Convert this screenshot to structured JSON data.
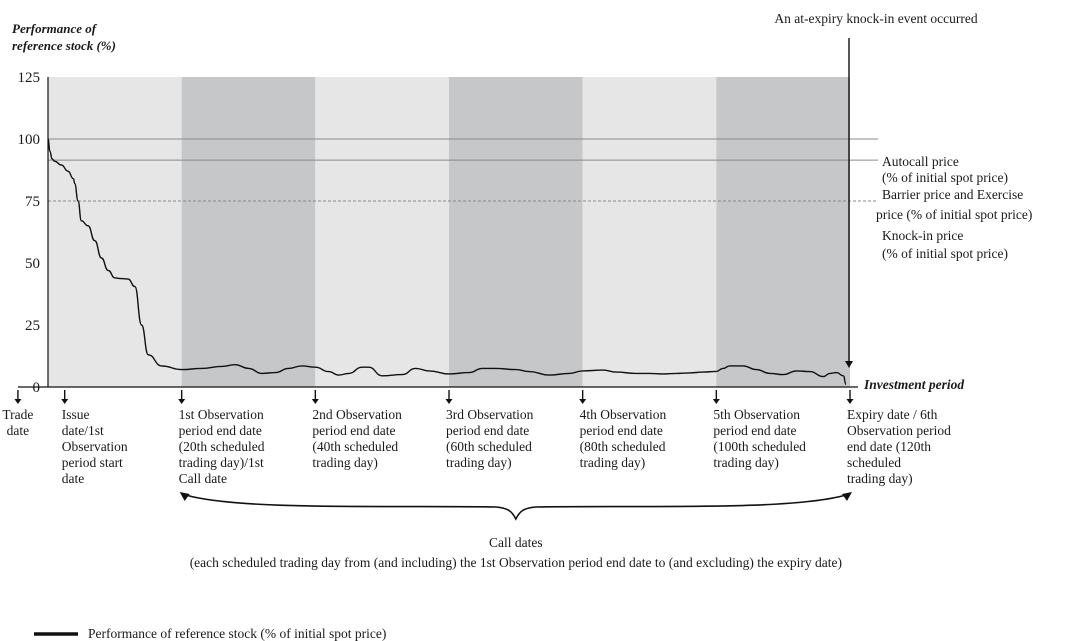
{
  "colors": {
    "light_band": "#e6e6e6",
    "dark_band": "#c5c7c9",
    "line": "#111111",
    "ref_line": "#8a8a8a"
  },
  "chart_data": {
    "type": "line",
    "ylabel": [
      "Performance of",
      "reference stock (%)"
    ],
    "xlabel": "Investment period",
    "ylim": [
      0,
      125
    ],
    "yticks": [
      0,
      25,
      50,
      75,
      100,
      125
    ],
    "xlim": [
      0,
      120
    ],
    "x_unit": "scheduled trading day",
    "bands": [
      {
        "from": 0,
        "to": 20,
        "shade": "light"
      },
      {
        "from": 20,
        "to": 40,
        "shade": "dark"
      },
      {
        "from": 40,
        "to": 60,
        "shade": "light"
      },
      {
        "from": 60,
        "to": 80,
        "shade": "dark"
      },
      {
        "from": 80,
        "to": 100,
        "shade": "light"
      },
      {
        "from": 100,
        "to": 120,
        "shade": "dark"
      }
    ],
    "reference_lines": [
      {
        "value": 100,
        "label": [
          "Autocall price",
          "(% of initial spot price)"
        ],
        "style": "solid"
      },
      {
        "value": 91.5,
        "label": [
          "Barrier price and Exercise",
          "price (% of initial spot price)"
        ],
        "style": "solid"
      },
      {
        "value": 75,
        "label": [
          "Knock-in price",
          "(% of initial spot price)"
        ],
        "style": "dashed"
      }
    ],
    "series": [
      {
        "name": "Performance of reference stock (% of initial spot price)",
        "x": [
          0,
          0.3,
          0.6,
          1,
          2,
          3,
          3.8,
          4,
          4.5,
          5,
          6,
          7,
          8,
          9,
          10,
          11,
          12,
          13,
          14,
          15,
          17,
          20,
          23,
          26,
          28,
          30,
          32,
          34,
          36,
          38,
          40,
          42,
          43.5,
          45,
          47,
          48,
          50,
          53,
          55,
          57,
          60,
          63,
          65,
          67,
          70,
          72,
          75,
          78,
          80,
          83,
          85,
          88,
          90,
          92,
          94,
          96,
          98,
          100,
          101,
          102,
          104,
          106,
          108,
          110,
          112,
          114,
          116,
          117,
          118,
          119,
          119.4
        ],
        "values": [
          100,
          95,
          92,
          91,
          89.5,
          87,
          84,
          82,
          75,
          67,
          65,
          59,
          52,
          47,
          44,
          43.7,
          43.5,
          40.5,
          25,
          13,
          8.5,
          7,
          7.5,
          8.3,
          9,
          7.5,
          5.5,
          5.8,
          7.5,
          8.5,
          8,
          6.2,
          4.8,
          5.5,
          8,
          8,
          4.5,
          5,
          7.5,
          6.5,
          5.3,
          5.8,
          7.5,
          7.5,
          7,
          6.2,
          4.8,
          5.5,
          6.5,
          6.8,
          6,
          5.5,
          5.5,
          5.3,
          5.5,
          5.7,
          6,
          6.3,
          7.5,
          8.5,
          8.5,
          7,
          5.5,
          5,
          6.5,
          6.2,
          4.2,
          5.5,
          5.8,
          4.5,
          1
        ]
      }
    ],
    "annotations": {
      "knock_in_event": "An at-expiry knock-in event occurred"
    },
    "x_markers": [
      {
        "x": -4.5,
        "text": [
          "Trade",
          "date"
        ]
      },
      {
        "x": 2.5,
        "text": [
          "Issue",
          "date/1st",
          "Observation",
          "period start",
          "date"
        ]
      },
      {
        "x": 20,
        "text": [
          "1st Observation",
          "period end date",
          "(20th scheduled",
          "trading day)/1st",
          "Call date"
        ]
      },
      {
        "x": 40,
        "text": [
          "2nd Observation",
          "period end date",
          "(40th scheduled",
          "trading day)"
        ]
      },
      {
        "x": 60,
        "text": [
          "3rd Observation",
          "period end date",
          "(60th scheduled",
          "trading day)"
        ]
      },
      {
        "x": 80,
        "text": [
          "4th Observation",
          "period end date",
          "(80th scheduled",
          "trading day)"
        ]
      },
      {
        "x": 100,
        "text": [
          "5th Observation",
          "period end date",
          "(100th scheduled",
          "trading day)"
        ]
      },
      {
        "x": 120,
        "text": [
          "Expiry date / 6th",
          "Observation period",
          "end date (120th",
          "scheduled",
          "trading day)"
        ]
      }
    ],
    "call_dates": {
      "title": "Call dates",
      "note": "(each scheduled trading day from (and including) the 1st Observation period end date to (and excluding) the expiry date)"
    },
    "legend": {
      "position": "bottom-left",
      "entries": [
        "Performance of reference stock (% of initial spot price)"
      ]
    }
  }
}
